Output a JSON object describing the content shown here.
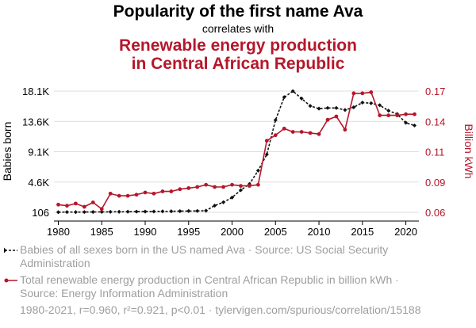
{
  "header": {
    "title_line1": "Popularity of the first name Ava",
    "subtitle": "correlates with",
    "title_line2a": "Renewable energy production",
    "title_line2b": "in Central African Republic"
  },
  "chart_data": {
    "type": "line",
    "x": [
      1980,
      1981,
      1982,
      1983,
      1984,
      1985,
      1986,
      1987,
      1988,
      1989,
      1990,
      1991,
      1992,
      1993,
      1994,
      1995,
      1996,
      1997,
      1998,
      1999,
      2000,
      2001,
      2002,
      2003,
      2004,
      2005,
      2006,
      2007,
      2008,
      2009,
      2010,
      2011,
      2012,
      2013,
      2014,
      2015,
      2016,
      2017,
      2018,
      2019,
      2020,
      2021
    ],
    "xticks": [
      1980,
      1985,
      1990,
      1995,
      2000,
      2005,
      2010,
      2015,
      2020
    ],
    "xlim": [
      1979.5,
      2021.5
    ],
    "left_axis": {
      "label": "Babies born",
      "ticks": [
        "106",
        "4.6K",
        "9.1K",
        "13.6K",
        "18.1K"
      ],
      "tick_values": [
        106,
        4600,
        9100,
        13600,
        18100
      ],
      "ylim": [
        106,
        18100
      ]
    },
    "right_axis": {
      "label": "Billion kWh",
      "ticks": [
        "0.06",
        "0.09",
        "0.11",
        "0.14",
        "0.17"
      ],
      "tick_values": [
        0.06,
        0.0875,
        0.115,
        0.1425,
        0.17
      ],
      "ylim": [
        0.06,
        0.17
      ]
    },
    "series": [
      {
        "name": "Babies of all sexes born in the US named Ava",
        "axis": "left",
        "color": "#111111",
        "style": "dashed",
        "marker": "diamond",
        "values": [
          130,
          145,
          140,
          150,
          160,
          165,
          180,
          190,
          200,
          210,
          220,
          230,
          250,
          260,
          280,
          300,
          310,
          350,
          1100,
          1600,
          2300,
          3400,
          4300,
          6300,
          8700,
          13800,
          17200,
          18100,
          17000,
          15900,
          15500,
          15600,
          15600,
          15300,
          15700,
          16400,
          16300,
          16000,
          15200,
          14700,
          13400,
          13000
        ]
      },
      {
        "name": "Total renewable energy production in Central African Republic in billion kWh",
        "axis": "right",
        "color": "#b5172b",
        "style": "solid",
        "marker": "circle",
        "values": [
          0.067,
          0.066,
          0.068,
          0.065,
          0.069,
          0.063,
          0.077,
          0.075,
          0.075,
          0.076,
          0.078,
          0.077,
          0.079,
          0.079,
          0.081,
          0.082,
          0.083,
          0.085,
          0.083,
          0.083,
          0.085,
          0.084,
          0.084,
          0.085,
          0.125,
          0.13,
          0.136,
          0.133,
          0.133,
          0.132,
          0.131,
          0.144,
          0.147,
          0.135,
          0.168,
          0.168,
          0.169,
          0.148,
          0.148,
          0.148,
          0.149,
          0.149
        ]
      }
    ]
  },
  "legend": {
    "series1_label": "Babies of all sexes born in the US named Ava · Source: US Social Security Administration",
    "series2_label": "Total renewable energy production in Central African Republic in billion kWh · Source: Energy Information Administration"
  },
  "footer": {
    "text": "1980-2021, r=0.960, r²=0.921, p<0.01 · tylervigen.com/spurious/correlation/15188"
  }
}
